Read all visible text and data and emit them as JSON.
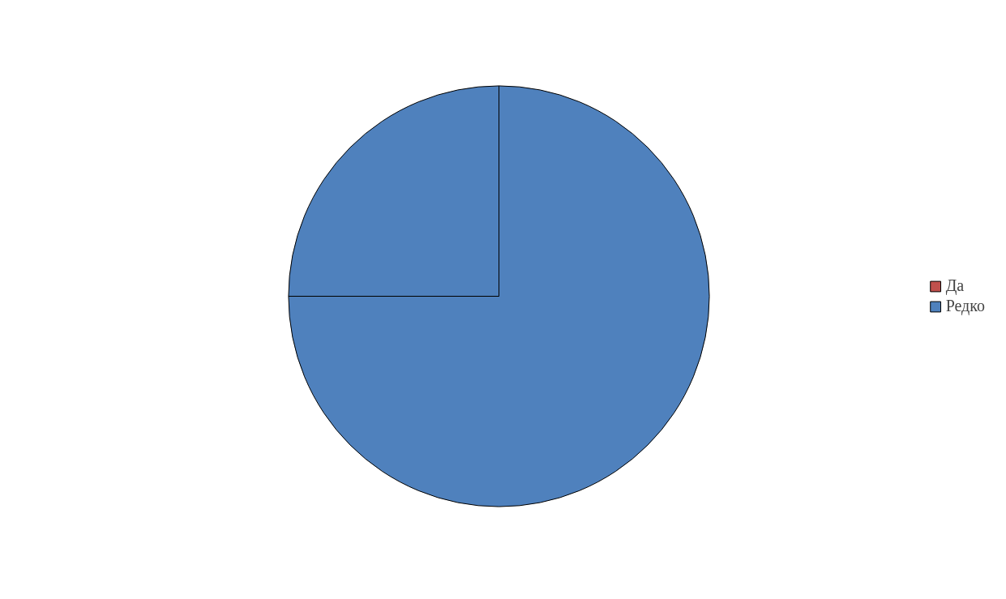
{
  "chart_data": {
    "type": "pie",
    "categories": [
      "Да",
      "Редко",
      null
    ],
    "values": [
      0,
      75,
      25
    ],
    "colors": [
      "#c0504d",
      "#4f81bd",
      "#4f81bd"
    ],
    "legend": "right"
  }
}
